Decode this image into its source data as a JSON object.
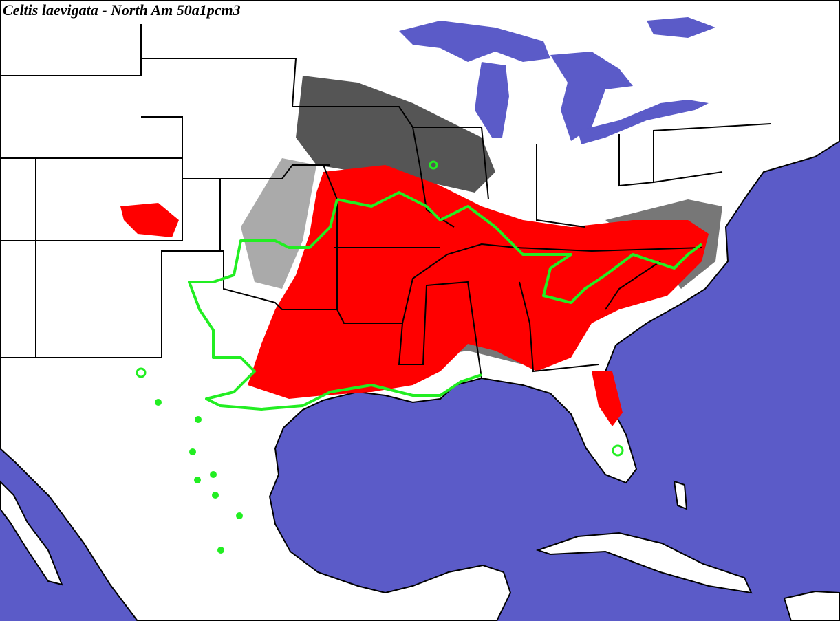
{
  "title": "Celtis laevigata - North Am 50a1pcm3"
}
